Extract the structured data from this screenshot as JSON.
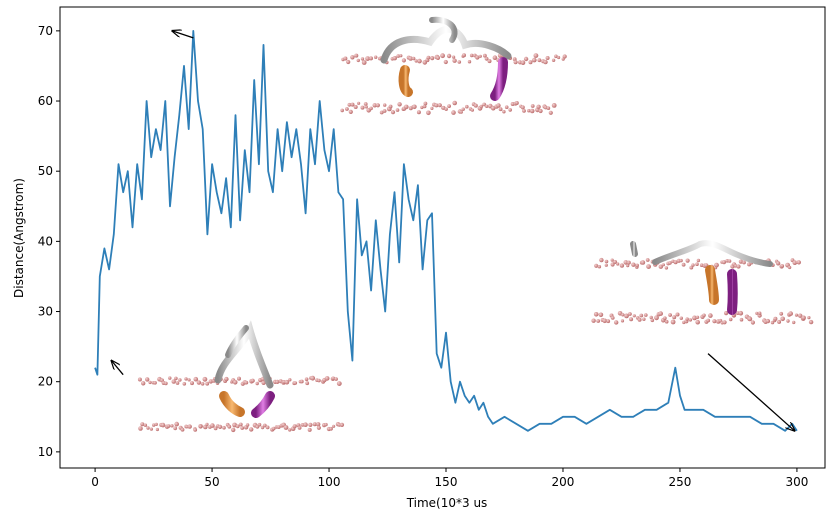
{
  "chart_data": {
    "type": "line",
    "title": "",
    "xlabel": "Time(10*3 us",
    "ylabel": "Distance(Angstrom)",
    "xlim": [
      -15,
      312
    ],
    "ylim": [
      7.7,
      73.4
    ],
    "xticks": [
      0,
      50,
      100,
      150,
      200,
      250,
      300
    ],
    "yticks": [
      10,
      20,
      30,
      40,
      50,
      60,
      70
    ],
    "grid": false,
    "legend": "none",
    "line_color": "#2e7fb8",
    "series": [
      {
        "x": [
          0,
          1,
          2,
          4,
          6,
          8,
          10,
          12,
          14,
          16,
          18,
          20,
          22,
          24,
          26,
          28,
          30,
          32,
          34,
          36,
          38,
          40,
          42,
          44,
          46,
          48,
          50,
          52,
          54,
          56,
          58,
          60,
          62,
          64,
          66,
          68,
          70,
          72,
          74,
          76,
          78,
          80,
          82,
          84,
          86,
          88,
          90,
          92,
          94,
          96,
          98,
          100,
          102,
          104,
          106,
          108,
          110,
          112,
          114,
          116,
          118,
          120,
          122,
          124,
          126,
          128,
          130,
          132,
          134,
          136,
          138,
          140,
          142,
          144,
          146,
          148,
          150,
          152,
          154,
          156,
          158,
          160,
          162,
          164,
          166,
          168,
          170,
          175,
          180,
          185,
          190,
          195,
          200,
          205,
          210,
          215,
          220,
          225,
          230,
          235,
          240,
          245,
          248,
          250,
          252,
          255,
          260,
          265,
          270,
          275,
          280,
          285,
          290,
          295,
          298,
          300
        ],
        "y": [
          22,
          21,
          35,
          39,
          36,
          41,
          51,
          47,
          50,
          42,
          51,
          46,
          60,
          52,
          56,
          53,
          60,
          45,
          52,
          58,
          65,
          56,
          70,
          60,
          56,
          41,
          51,
          47,
          44,
          49,
          42,
          58,
          43,
          53,
          47,
          63,
          51,
          68,
          50,
          47,
          56,
          50,
          57,
          52,
          56,
          51,
          44,
          56,
          51,
          60,
          53,
          50,
          56,
          47,
          46,
          30,
          23,
          46,
          38,
          40,
          33,
          43,
          36,
          30,
          41,
          47,
          37,
          51,
          46,
          43,
          48,
          36,
          43,
          44,
          24,
          22,
          27,
          20,
          17,
          20,
          18,
          17,
          18,
          16,
          17,
          15,
          14,
          15,
          14,
          13,
          14,
          14,
          15,
          15,
          14,
          15,
          16,
          15,
          15,
          16,
          16,
          17,
          22,
          18,
          16,
          16,
          16,
          15,
          15,
          15,
          15,
          14,
          14,
          13,
          14,
          13
        ]
      }
    ],
    "annotations": [
      {
        "from": [
          42,
          69
        ],
        "to": [
          33,
          70
        ],
        "style": "arrow"
      },
      {
        "from": [
          12,
          21
        ],
        "to": [
          7,
          23
        ],
        "style": "arrow"
      },
      {
        "from": [
          262,
          24
        ],
        "to": [
          299,
          13
        ],
        "style": "arrow"
      }
    ]
  }
}
